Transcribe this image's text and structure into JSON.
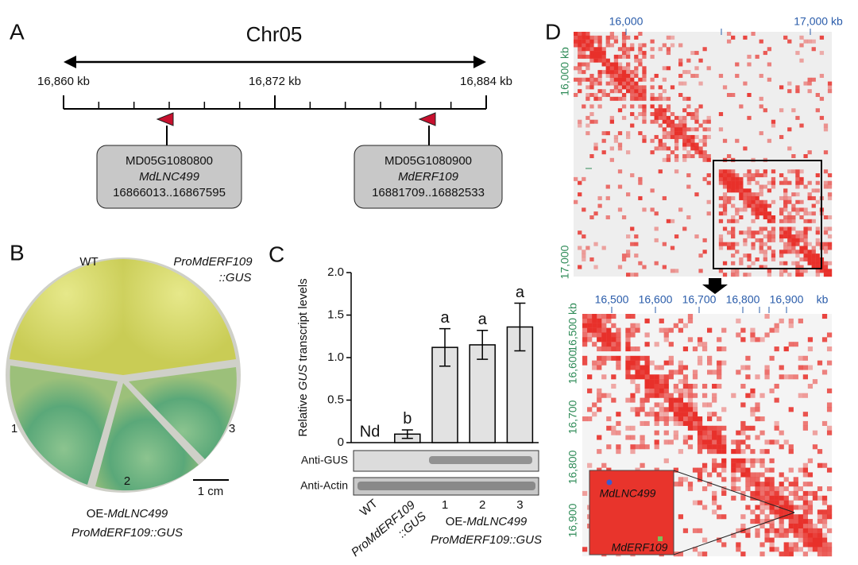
{
  "panel_a": {
    "label": "A",
    "title": "Chr05",
    "axis": {
      "xlim": [
        16860,
        16884
      ],
      "ticks": [
        {
          "value": 16860,
          "label": "16,860 kb"
        },
        {
          "value": 16872,
          "label": "16,872 kb"
        },
        {
          "value": 16884,
          "label": "16,884 kb"
        }
      ]
    },
    "genes": [
      {
        "id": "MD05G1080800",
        "name": "MdLNC499",
        "range": "16866013..16867595"
      },
      {
        "id": "MD05G1080900",
        "name": "MdERF109",
        "range": "16881709..16882533"
      }
    ]
  },
  "panel_b": {
    "label": "B",
    "wt": "WT",
    "reporter": [
      "ProMdERF109",
      "::GUS"
    ],
    "lines": [
      "1",
      "2",
      "3"
    ],
    "scale": "1 cm",
    "group": {
      "prefix": "OE-",
      "name": "MdLNC499",
      "construct": "ProMdERF109::GUS"
    }
  },
  "chart_data": {
    "type": "bar",
    "panel_label": "C",
    "y_label": [
      "Relative ",
      "GUS",
      " transcript levels"
    ],
    "categories": [
      "WT",
      [
        "ProMdERF109",
        "::GUS"
      ],
      "1",
      "2",
      "3"
    ],
    "values": [
      null,
      0.1,
      1.12,
      1.15,
      1.36
    ],
    "errors": [
      null,
      0.05,
      0.22,
      0.17,
      0.28
    ],
    "significance": [
      "Nd",
      "b",
      "a",
      "a",
      "a"
    ],
    "color": "#e2e2e2",
    "ylim": [
      0,
      2
    ],
    "yticks": [
      0,
      0.5,
      {
        "value": 1,
        "label": "1.0"
      },
      1.5,
      {
        "value": 2,
        "label": "2.0"
      }
    ],
    "group_label": {
      "prefix": "OE-",
      "name": "MdLNC499",
      "construct": "ProMdERF109::GUS"
    },
    "blots": [
      "Anti-GUS",
      "Anti-Actin"
    ]
  },
  "panel_d": {
    "label": "D",
    "overview": {
      "top_ticks": [
        "16,000",
        "17,000 kb"
      ],
      "left_ticks": [
        "16,000 kb",
        "17,000"
      ]
    },
    "zoom": {
      "top_ticks": [
        "16,500",
        "16,600",
        "16,700",
        "16,800",
        "16,900"
      ],
      "unit": "kb",
      "left_ticks": [
        "16,500 kb",
        "16,600",
        "16,700",
        "16,800",
        "16,900"
      ]
    },
    "inset": [
      "MdLNC499",
      "MdERF109"
    ]
  }
}
